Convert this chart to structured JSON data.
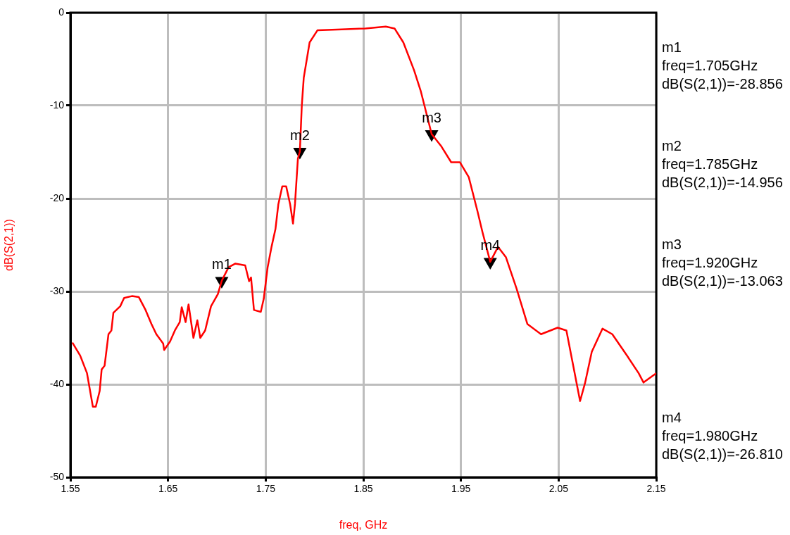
{
  "chart_data": {
    "type": "line",
    "xlabel": "freq, GHz",
    "ylabel": "dB(S(2,1))",
    "xlim": [
      1.55,
      2.15
    ],
    "xticks": [
      1.55,
      1.65,
      1.75,
      1.85,
      1.95,
      2.05,
      2.15
    ],
    "ylim": [
      -50,
      0
    ],
    "yticks": [
      -50,
      -40,
      -30,
      -20,
      -10,
      0
    ],
    "grid": true,
    "legend": false,
    "marker": "none",
    "line_style": "solid",
    "series": [
      {
        "color": "#ff0000",
        "x": [
          1.552,
          1.56,
          1.567,
          1.573,
          1.576,
          1.58,
          1.582,
          1.585,
          1.589,
          1.592,
          1.594,
          1.601,
          1.605,
          1.613,
          1.62,
          1.627,
          1.633,
          1.638,
          1.645,
          1.646,
          1.652,
          1.657,
          1.662,
          1.664,
          1.668,
          1.671,
          1.676,
          1.68,
          1.683,
          1.688,
          1.694,
          1.701,
          1.705,
          1.712,
          1.719,
          1.729,
          1.733,
          1.735,
          1.738,
          1.745,
          1.748,
          1.752,
          1.756,
          1.76,
          1.763,
          1.767,
          1.771,
          1.775,
          1.778,
          1.78,
          1.783,
          1.785,
          1.787,
          1.789,
          1.795,
          1.803,
          1.828,
          1.852,
          1.873,
          1.882,
          1.891,
          1.902,
          1.909,
          1.92,
          1.93,
          1.94,
          1.949,
          1.958,
          1.967,
          1.972,
          1.98,
          1.988,
          1.996,
          2.007,
          2.018,
          2.032,
          2.049,
          2.058,
          2.065,
          2.072,
          2.077,
          2.084,
          2.095,
          2.105,
          2.12,
          2.132,
          2.137,
          2.15
        ],
        "values": [
          -35.5,
          -36.9,
          -38.8,
          -42.4,
          -42.4,
          -40.7,
          -38.4,
          -38.0,
          -34.6,
          -34.2,
          -32.3,
          -31.6,
          -30.7,
          -30.5,
          -30.6,
          -32,
          -33.5,
          -34.6,
          -35.6,
          -36.3,
          -35.4,
          -34.2,
          -33.3,
          -31.7,
          -33.3,
          -31.4,
          -35,
          -33.1,
          -35,
          -34.2,
          -31.6,
          -30.3,
          -28.856,
          -27.4,
          -27.0,
          -27.2,
          -28.9,
          -28.5,
          -32,
          -32.2,
          -30.8,
          -27.4,
          -25.2,
          -23.3,
          -20.6,
          -18.7,
          -18.7,
          -20.6,
          -22.7,
          -20.6,
          -15.7,
          -14.956,
          -10,
          -7,
          -3.2,
          -1.9,
          -1.8,
          -1.7,
          -1.5,
          -1.7,
          -3.2,
          -6.2,
          -8.5,
          -13.063,
          -14.4,
          -16.1,
          -16.1,
          -17.7,
          -21.4,
          -23.6,
          -26.81,
          -25.2,
          -26.3,
          -29.7,
          -33.5,
          -34.6,
          -33.9,
          -34.2,
          -38,
          -41.8,
          -39.9,
          -36.5,
          -34,
          -34.6,
          -36.9,
          -38.8,
          -39.8,
          -38.8
        ]
      },
      {
        "type": "scatter",
        "marker": "triangle",
        "color": "#000000",
        "x": [
          1.705,
          1.785,
          1.92,
          1.98
        ],
        "values": [
          -28.856,
          -14.956,
          -13.063,
          -26.81
        ]
      }
    ],
    "annotations": [
      {
        "text": "m1",
        "x": 1.705,
        "y": -28.856
      },
      {
        "text": "m2",
        "x": 1.785,
        "y": -14.956
      },
      {
        "text": "m3",
        "x": 1.92,
        "y": -13.063
      },
      {
        "text": "m4",
        "x": 1.98,
        "y": -26.81
      },
      "m1\nfreq=1.705GHz\ndB(S(2,1))=-28.856",
      "m2\nfreq=1.785GHz\ndB(S(2,1))=-14.956",
      "m3\nfreq=1.920GHz\ndB(S(2,1))=-13.063",
      "m4\nfreq=1.980GHz\ndB(S(2,1))=-26.810"
    ]
  }
}
